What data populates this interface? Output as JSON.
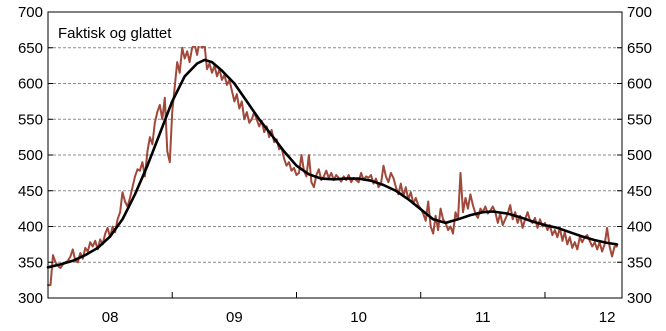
{
  "chart_data": {
    "type": "line",
    "title": "",
    "xlabel": "",
    "ylabel": "",
    "annotation": "Faktisk og glattet",
    "ylim": [
      300,
      700
    ],
    "yticks": [
      300,
      350,
      400,
      450,
      500,
      550,
      600,
      650,
      700
    ],
    "xlim": [
      2007.5,
      2012.12
    ],
    "xtick_labels": [
      {
        "label": "08",
        "x": 2008.0
      },
      {
        "label": "09",
        "x": 2009.0
      },
      {
        "label": "10",
        "x": 2010.0
      },
      {
        "label": "11",
        "x": 2011.0
      },
      {
        "label": "12",
        "x": 2012.0
      }
    ],
    "x_minor_ticks": [
      2008.5,
      2009.5,
      2010.5,
      2011.5
    ],
    "grid": "horizontal dashed",
    "dual_y_axis": true,
    "colors": {
      "faktisk": "#A0483A",
      "glattet": "#000000",
      "grid": "#8c8c8c"
    },
    "series": [
      {
        "key": "faktisk",
        "points": [
          [
            2007.5,
            318
          ],
          [
            2007.52,
            318
          ],
          [
            2007.54,
            360
          ],
          [
            2007.56,
            350
          ],
          [
            2007.58,
            345
          ],
          [
            2007.6,
            342
          ],
          [
            2007.62,
            347
          ],
          [
            2007.64,
            350
          ],
          [
            2007.66,
            352
          ],
          [
            2007.68,
            358
          ],
          [
            2007.7,
            368
          ],
          [
            2007.72,
            352
          ],
          [
            2007.74,
            350
          ],
          [
            2007.76,
            363
          ],
          [
            2007.78,
            355
          ],
          [
            2007.8,
            370
          ],
          [
            2007.82,
            365
          ],
          [
            2007.84,
            378
          ],
          [
            2007.86,
            372
          ],
          [
            2007.88,
            380
          ],
          [
            2007.9,
            368
          ],
          [
            2007.92,
            382
          ],
          [
            2007.94,
            375
          ],
          [
            2007.96,
            390
          ],
          [
            2007.98,
            398
          ],
          [
            2008.0,
            385
          ],
          [
            2008.02,
            400
          ],
          [
            2008.04,
            392
          ],
          [
            2008.06,
            410
          ],
          [
            2008.08,
            420
          ],
          [
            2008.1,
            448
          ],
          [
            2008.12,
            435
          ],
          [
            2008.14,
            428
          ],
          [
            2008.16,
            440
          ],
          [
            2008.18,
            455
          ],
          [
            2008.2,
            470
          ],
          [
            2008.22,
            480
          ],
          [
            2008.24,
            478
          ],
          [
            2008.26,
            490
          ],
          [
            2008.28,
            470
          ],
          [
            2008.3,
            505
          ],
          [
            2008.32,
            525
          ],
          [
            2008.34,
            515
          ],
          [
            2008.36,
            545
          ],
          [
            2008.38,
            560
          ],
          [
            2008.4,
            570
          ],
          [
            2008.42,
            550
          ],
          [
            2008.44,
            580
          ],
          [
            2008.46,
            505
          ],
          [
            2008.48,
            490
          ],
          [
            2008.5,
            560
          ],
          [
            2008.52,
            595
          ],
          [
            2008.54,
            630
          ],
          [
            2008.56,
            615
          ],
          [
            2008.58,
            650
          ],
          [
            2008.6,
            635
          ],
          [
            2008.62,
            645
          ],
          [
            2008.64,
            630
          ],
          [
            2008.66,
            650
          ],
          [
            2008.68,
            655
          ],
          [
            2008.7,
            640
          ],
          [
            2008.72,
            660
          ],
          [
            2008.74,
            650
          ],
          [
            2008.76,
            655
          ],
          [
            2008.78,
            620
          ],
          [
            2008.8,
            628
          ],
          [
            2008.82,
            615
          ],
          [
            2008.84,
            625
          ],
          [
            2008.86,
            610
          ],
          [
            2008.88,
            620
          ],
          [
            2008.9,
            605
          ],
          [
            2008.92,
            612
          ],
          [
            2008.94,
            598
          ],
          [
            2008.96,
            605
          ],
          [
            2008.98,
            590
          ],
          [
            2009.0,
            575
          ],
          [
            2009.02,
            585
          ],
          [
            2009.04,
            565
          ],
          [
            2009.06,
            575
          ],
          [
            2009.08,
            550
          ],
          [
            2009.1,
            560
          ],
          [
            2009.12,
            545
          ],
          [
            2009.14,
            550
          ],
          [
            2009.16,
            560
          ],
          [
            2009.18,
            550
          ],
          [
            2009.2,
            540
          ],
          [
            2009.22,
            548
          ],
          [
            2009.24,
            532
          ],
          [
            2009.26,
            540
          ],
          [
            2009.28,
            525
          ],
          [
            2009.3,
            535
          ],
          [
            2009.32,
            518
          ],
          [
            2009.34,
            522
          ],
          [
            2009.36,
            508
          ],
          [
            2009.38,
            510
          ],
          [
            2009.4,
            495
          ],
          [
            2009.42,
            485
          ],
          [
            2009.44,
            490
          ],
          [
            2009.46,
            478
          ],
          [
            2009.48,
            482
          ],
          [
            2009.5,
            472
          ],
          [
            2009.52,
            475
          ],
          [
            2009.54,
            500
          ],
          [
            2009.56,
            478
          ],
          [
            2009.58,
            470
          ],
          [
            2009.6,
            500
          ],
          [
            2009.62,
            462
          ],
          [
            2009.64,
            455
          ],
          [
            2009.66,
            472
          ],
          [
            2009.68,
            480
          ],
          [
            2009.7,
            465
          ],
          [
            2009.72,
            470
          ],
          [
            2009.74,
            478
          ],
          [
            2009.76,
            468
          ],
          [
            2009.78,
            475
          ],
          [
            2009.8,
            465
          ],
          [
            2009.82,
            472
          ],
          [
            2009.84,
            468
          ],
          [
            2009.86,
            463
          ],
          [
            2009.88,
            470
          ],
          [
            2009.9,
            465
          ],
          [
            2009.92,
            472
          ],
          [
            2009.94,
            462
          ],
          [
            2009.96,
            468
          ],
          [
            2009.98,
            465
          ],
          [
            2010.0,
            462
          ],
          [
            2010.02,
            475
          ],
          [
            2010.04,
            465
          ],
          [
            2010.06,
            470
          ],
          [
            2010.08,
            468
          ],
          [
            2010.1,
            472
          ],
          [
            2010.12,
            460
          ],
          [
            2010.14,
            467
          ],
          [
            2010.16,
            455
          ],
          [
            2010.18,
            460
          ],
          [
            2010.2,
            485
          ],
          [
            2010.22,
            470
          ],
          [
            2010.24,
            462
          ],
          [
            2010.26,
            475
          ],
          [
            2010.28,
            468
          ],
          [
            2010.3,
            455
          ],
          [
            2010.32,
            445
          ],
          [
            2010.34,
            460
          ],
          [
            2010.36,
            442
          ],
          [
            2010.38,
            455
          ],
          [
            2010.4,
            438
          ],
          [
            2010.42,
            448
          ],
          [
            2010.44,
            432
          ],
          [
            2010.46,
            440
          ],
          [
            2010.48,
            430
          ],
          [
            2010.5,
            425
          ],
          [
            2010.52,
            418
          ],
          [
            2010.54,
            408
          ],
          [
            2010.56,
            435
          ],
          [
            2010.58,
            400
          ],
          [
            2010.6,
            390
          ],
          [
            2010.62,
            415
          ],
          [
            2010.64,
            395
          ],
          [
            2010.66,
            425
          ],
          [
            2010.68,
            410
          ],
          [
            2010.7,
            405
          ],
          [
            2010.72,
            395
          ],
          [
            2010.74,
            400
          ],
          [
            2010.76,
            390
          ],
          [
            2010.78,
            420
          ],
          [
            2010.8,
            410
          ],
          [
            2010.82,
            475
          ],
          [
            2010.84,
            420
          ],
          [
            2010.86,
            440
          ],
          [
            2010.88,
            425
          ],
          [
            2010.9,
            445
          ],
          [
            2010.92,
            430
          ],
          [
            2010.94,
            418
          ],
          [
            2010.96,
            412
          ],
          [
            2010.98,
            425
          ],
          [
            2011.0,
            420
          ],
          [
            2011.02,
            428
          ],
          [
            2011.04,
            418
          ],
          [
            2011.06,
            422
          ],
          [
            2011.08,
            428
          ],
          [
            2011.1,
            420
          ],
          [
            2011.12,
            405
          ],
          [
            2011.14,
            418
          ],
          [
            2011.16,
            402
          ],
          [
            2011.18,
            410
          ],
          [
            2011.2,
            418
          ],
          [
            2011.22,
            430
          ],
          [
            2011.24,
            410
          ],
          [
            2011.26,
            420
          ],
          [
            2011.28,
            405
          ],
          [
            2011.3,
            415
          ],
          [
            2011.32,
            398
          ],
          [
            2011.34,
            410
          ],
          [
            2011.36,
            420
          ],
          [
            2011.38,
            408
          ],
          [
            2011.4,
            405
          ],
          [
            2011.42,
            412
          ],
          [
            2011.44,
            398
          ],
          [
            2011.46,
            410
          ],
          [
            2011.48,
            400
          ],
          [
            2011.5,
            405
          ],
          [
            2011.52,
            395
          ],
          [
            2011.54,
            402
          ],
          [
            2011.56,
            388
          ],
          [
            2011.58,
            395
          ],
          [
            2011.6,
            385
          ],
          [
            2011.62,
            398
          ],
          [
            2011.64,
            380
          ],
          [
            2011.66,
            392
          ],
          [
            2011.68,
            375
          ],
          [
            2011.7,
            385
          ],
          [
            2011.72,
            370
          ],
          [
            2011.74,
            378
          ],
          [
            2011.76,
            368
          ],
          [
            2011.78,
            385
          ],
          [
            2011.8,
            378
          ],
          [
            2011.82,
            385
          ],
          [
            2011.84,
            388
          ],
          [
            2011.86,
            380
          ],
          [
            2011.88,
            372
          ],
          [
            2011.9,
            378
          ],
          [
            2011.92,
            368
          ],
          [
            2011.94,
            378
          ],
          [
            2011.96,
            365
          ],
          [
            2011.98,
            375
          ],
          [
            2012.0,
            398
          ],
          [
            2012.02,
            372
          ],
          [
            2012.04,
            358
          ],
          [
            2012.06,
            372
          ],
          [
            2012.08,
            372
          ]
        ]
      },
      {
        "key": "glattet",
        "points": [
          [
            2007.5,
            343
          ],
          [
            2007.6,
            347
          ],
          [
            2007.7,
            352
          ],
          [
            2007.8,
            360
          ],
          [
            2007.9,
            370
          ],
          [
            2008.0,
            386
          ],
          [
            2008.1,
            410
          ],
          [
            2008.2,
            445
          ],
          [
            2008.3,
            485
          ],
          [
            2008.4,
            530
          ],
          [
            2008.5,
            575
          ],
          [
            2008.6,
            610
          ],
          [
            2008.7,
            628
          ],
          [
            2008.76,
            633
          ],
          [
            2008.82,
            630
          ],
          [
            2008.9,
            618
          ],
          [
            2009.0,
            600
          ],
          [
            2009.1,
            575
          ],
          [
            2009.2,
            550
          ],
          [
            2009.3,
            528
          ],
          [
            2009.4,
            505
          ],
          [
            2009.5,
            485
          ],
          [
            2009.6,
            473
          ],
          [
            2009.7,
            467
          ],
          [
            2009.8,
            466
          ],
          [
            2009.9,
            467
          ],
          [
            2010.0,
            467
          ],
          [
            2010.1,
            464
          ],
          [
            2010.2,
            458
          ],
          [
            2010.3,
            450
          ],
          [
            2010.4,
            438
          ],
          [
            2010.5,
            424
          ],
          [
            2010.6,
            410
          ],
          [
            2010.7,
            405
          ],
          [
            2010.8,
            410
          ],
          [
            2010.9,
            416
          ],
          [
            2011.0,
            420
          ],
          [
            2011.08,
            421
          ],
          [
            2011.2,
            418
          ],
          [
            2011.3,
            413
          ],
          [
            2011.4,
            407
          ],
          [
            2011.5,
            402
          ],
          [
            2011.6,
            398
          ],
          [
            2011.7,
            392
          ],
          [
            2011.8,
            386
          ],
          [
            2011.9,
            381
          ],
          [
            2012.0,
            377
          ],
          [
            2012.08,
            375
          ]
        ]
      }
    ]
  }
}
